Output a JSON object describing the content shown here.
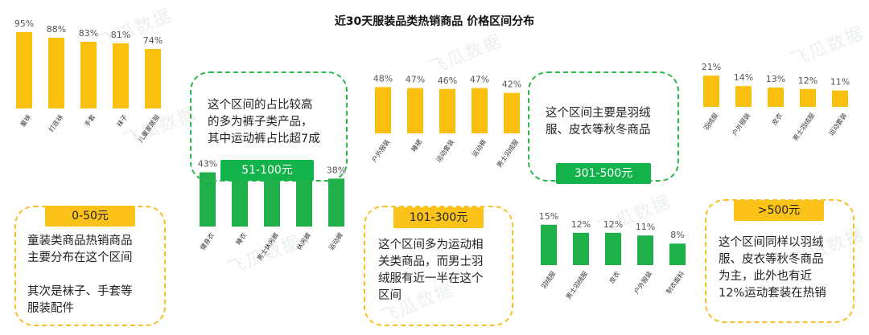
{
  "page": {
    "title": "近30天服装品类热销商品 价格区间分布",
    "watermark": "飞瓜数据"
  },
  "colors": {
    "yellow": "#f9c00f",
    "green": "#1fb04b"
  },
  "panels": {
    "p1": {
      "label": "51-100元",
      "text": "这个区间的占比较高\n的多为裤子类产品，\n其中运动裤占比超7成"
    },
    "p2": {
      "label": "301-500元",
      "text": "这个区间主要是羽绒\n服、皮衣等秋冬商品"
    },
    "p3": {
      "label": "0-50元",
      "text": "童装类商品热销商品\n主要分布在这个区间\n\n其次是袜子、手套等\n服装配件"
    },
    "p4": {
      "label": "101-300元",
      "text": "这个区间多为运动相\n关类商品，而男士羽\n绒服有近一半在这个\n区间"
    },
    "p5": {
      "label": ">500元",
      "text": "这个区间同样以羽绒\n服、皮衣等秋冬商品\n为主，此外也有近\n12%运动套装在热销"
    }
  },
  "chart_data": [
    {
      "type": "bar",
      "price_range": "0-50元",
      "color": "#f9c00f",
      "categories": [
        "童袜",
        "打底袜",
        "手套",
        "袜子",
        "儿童家居服"
      ],
      "values": [
        95,
        88,
        83,
        81,
        74
      ],
      "labels": [
        "95%",
        "88%",
        "83%",
        "81%",
        "74%"
      ]
    },
    {
      "type": "bar",
      "price_range": "51-100元",
      "color": "#f9c00f",
      "categories": [
        "户外服装",
        "睡裙",
        "运动套装",
        "运动裤",
        "男士羽绒服"
      ],
      "values": [
        48,
        47,
        46,
        47,
        42
      ],
      "labels": [
        "48%",
        "47%",
        "46%",
        "47%",
        "42%"
      ]
    },
    {
      "type": "bar",
      "price_range": ">500元",
      "color": "#f9c00f",
      "categories": [
        "羽绒服",
        "户外服装",
        "皮衣",
        "男士羽绒服",
        "运动套装"
      ],
      "values": [
        21,
        14,
        13,
        12,
        11
      ],
      "labels": [
        "21%",
        "14%",
        "13%",
        "12%",
        "11%"
      ]
    },
    {
      "type": "bar",
      "price_range": "101-300元",
      "color": "#1fb04b",
      "categories": [
        "健身衣",
        "睡衣",
        "男士休闲裤",
        "休闲裤",
        "运动裤"
      ],
      "values": [
        43,
        41,
        40,
        39,
        38
      ],
      "labels": [
        "43%",
        "41%",
        "40%",
        "39%",
        "38%"
      ]
    },
    {
      "type": "bar",
      "price_range": "301-500元",
      "color": "#1fb04b",
      "categories": [
        "羽绒服",
        "男士羽绒服",
        "皮衣",
        "户外服装",
        "制衣面料"
      ],
      "values": [
        15,
        12,
        12,
        11,
        8
      ],
      "labels": [
        "15%",
        "12%",
        "12%",
        "11%",
        "8%"
      ]
    }
  ]
}
